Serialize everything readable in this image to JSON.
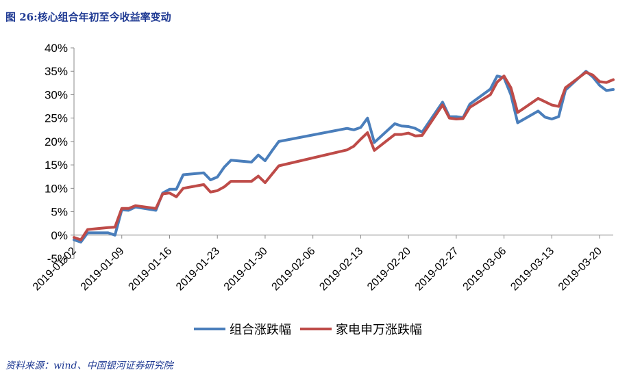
{
  "title": "图 26:核心组合年初至今收益率变动",
  "source": "资料来源：wind、中国银河证券研究院",
  "chart_data": {
    "type": "line",
    "title": "",
    "xlabel": "",
    "ylabel": "",
    "ylim": [
      -5,
      40
    ],
    "yticks": [
      "-5%",
      "0%",
      "5%",
      "10%",
      "15%",
      "20%",
      "25%",
      "30%",
      "35%",
      "40%"
    ],
    "xticks": [
      "2019-01-02",
      "2019-01-09",
      "2019-01-16",
      "2019-01-23",
      "2019-01-30",
      "2019-02-06",
      "2019-02-13",
      "2019-02-20",
      "2019-02-27",
      "2019-03-06",
      "2019-03-13",
      "2019-03-20"
    ],
    "xlim": [
      "2019-01-02",
      "2019-03-22"
    ],
    "grid": false,
    "legend": "bottom",
    "x": [
      "2019-01-02",
      "2019-01-03",
      "2019-01-04",
      "2019-01-07",
      "2019-01-08",
      "2019-01-09",
      "2019-01-10",
      "2019-01-11",
      "2019-01-14",
      "2019-01-15",
      "2019-01-16",
      "2019-01-17",
      "2019-01-18",
      "2019-01-21",
      "2019-01-22",
      "2019-01-23",
      "2019-01-24",
      "2019-01-25",
      "2019-01-28",
      "2019-01-29",
      "2019-01-30",
      "2019-01-31",
      "2019-02-01",
      "2019-02-11",
      "2019-02-12",
      "2019-02-13",
      "2019-02-14",
      "2019-02-15",
      "2019-02-18",
      "2019-02-19",
      "2019-02-20",
      "2019-02-21",
      "2019-02-22",
      "2019-02-25",
      "2019-02-26",
      "2019-02-27",
      "2019-02-28",
      "2019-03-01",
      "2019-03-04",
      "2019-03-05",
      "2019-03-06",
      "2019-03-07",
      "2019-03-08",
      "2019-03-11",
      "2019-03-12",
      "2019-03-13",
      "2019-03-14",
      "2019-03-15",
      "2019-03-18",
      "2019-03-19",
      "2019-03-20",
      "2019-03-21",
      "2019-03-22"
    ],
    "series": [
      {
        "name": "组合涨跌幅",
        "color": "#4a7ebb",
        "values": [
          -1.0,
          -1.5,
          0.5,
          0.5,
          0.0,
          5.4,
          5.3,
          6.0,
          5.3,
          9.0,
          9.8,
          9.8,
          12.9,
          13.3,
          11.8,
          12.4,
          14.5,
          16.0,
          15.6,
          17.1,
          15.9,
          18.0,
          20.0,
          22.8,
          22.5,
          23.0,
          25.0,
          19.8,
          23.8,
          23.3,
          23.2,
          22.8,
          22.0,
          28.4,
          25.3,
          25.3,
          25.1,
          28.0,
          31.2,
          34.0,
          33.6,
          30.0,
          24.0,
          26.5,
          25.2,
          24.8,
          25.3,
          31.0,
          35.0,
          33.8,
          32.0,
          30.9,
          31.1
        ]
      },
      {
        "name": "家电申万涨跌幅",
        "color": "#be4b48",
        "values": [
          -0.5,
          -1.0,
          1.2,
          1.6,
          1.7,
          5.7,
          5.7,
          6.3,
          5.7,
          8.8,
          9.0,
          8.2,
          10.0,
          10.8,
          9.2,
          9.5,
          10.3,
          11.5,
          11.5,
          12.6,
          11.2,
          13.0,
          14.8,
          18.2,
          19.0,
          20.5,
          21.9,
          18.1,
          21.5,
          21.5,
          21.8,
          21.2,
          21.3,
          27.8,
          25.0,
          24.8,
          24.9,
          27.3,
          30.0,
          32.7,
          34.0,
          31.5,
          26.2,
          29.2,
          28.5,
          27.8,
          27.5,
          31.5,
          34.8,
          34.2,
          32.8,
          32.6,
          33.2
        ]
      }
    ]
  }
}
